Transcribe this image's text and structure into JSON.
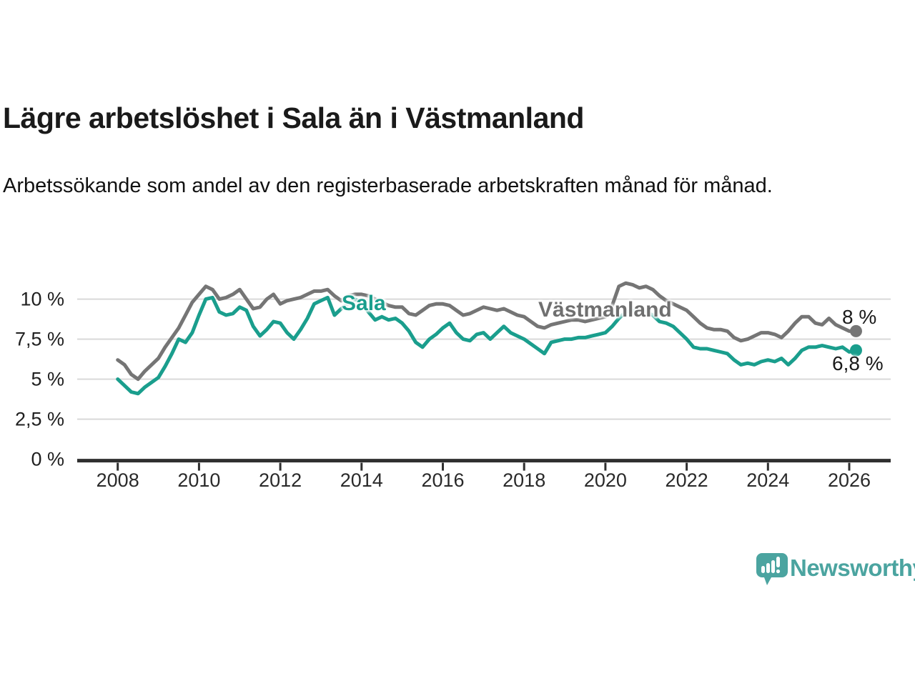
{
  "header": {
    "title": "Lägre arbetslöshet i Sala än i Västmanland",
    "subtitle": "Arbetssökande som andel av den registerbaserade arbetskraften månad för månad."
  },
  "chart": {
    "y_axis": {
      "tick_labels": [
        "10 %",
        "7,5 %",
        "5 %",
        "2,5 %",
        "0 %"
      ],
      "tick_values": [
        10,
        7.5,
        5,
        2.5,
        0
      ]
    },
    "x_axis": {
      "tick_labels": [
        "2008",
        "2010",
        "2012",
        "2014",
        "2016",
        "2018",
        "2020",
        "2022",
        "2024",
        "2026"
      ],
      "tick_values": [
        2008,
        2010,
        2012,
        2014,
        2016,
        2018,
        2020,
        2022,
        2024,
        2026
      ]
    },
    "series_labels": {
      "sala": "Sala",
      "vastmanland": "Västmanland"
    },
    "end_labels": {
      "vastmanland": "8 %",
      "sala": "6,8 %"
    },
    "colors": {
      "sala": "#1a9e8d",
      "vastmanland": "#757575",
      "grid": "#d9d9d9",
      "axis": "#2f2f2f",
      "text": "#1a1a1a"
    }
  },
  "chart_data": {
    "type": "line",
    "title": "Lägre arbetslöshet i Sala än i Västmanland",
    "subtitle": "Arbetssökande som andel av den registerbaserade arbetskraften månad för månad.",
    "unit": "%",
    "x_start": 2008.0,
    "x_step_years": 0.166667,
    "x_end": 2026.17,
    "ylim": [
      0,
      11.5
    ],
    "grid": true,
    "series": [
      {
        "name": "Västmanland",
        "color": "#757575",
        "end_value": 8.0,
        "end_label": "8 %",
        "values": [
          6.2,
          5.9,
          5.3,
          5.0,
          5.5,
          5.9,
          6.3,
          7.0,
          7.6,
          8.2,
          9.0,
          9.8,
          10.3,
          10.8,
          10.6,
          10.0,
          10.1,
          10.3,
          10.6,
          10.0,
          9.4,
          9.5,
          10.0,
          10.3,
          9.7,
          9.9,
          10.0,
          10.1,
          10.3,
          10.5,
          10.5,
          10.6,
          10.2,
          9.9,
          10.2,
          10.3,
          10.3,
          10.2,
          10.0,
          9.8,
          9.6,
          9.5,
          9.5,
          9.1,
          9.0,
          9.3,
          9.6,
          9.7,
          9.7,
          9.6,
          9.3,
          9.0,
          9.1,
          9.3,
          9.5,
          9.4,
          9.3,
          9.4,
          9.2,
          9.0,
          8.9,
          8.6,
          8.3,
          8.2,
          8.4,
          8.5,
          8.6,
          8.7,
          8.7,
          8.6,
          8.7,
          8.8,
          8.9,
          9.6,
          10.8,
          11.0,
          10.9,
          10.7,
          10.8,
          10.6,
          10.2,
          9.9,
          9.7,
          9.5,
          9.3,
          8.9,
          8.5,
          8.2,
          8.1,
          8.1,
          8.0,
          7.6,
          7.4,
          7.5,
          7.7,
          7.9,
          7.9,
          7.8,
          7.6,
          8.0,
          8.5,
          8.9,
          8.9,
          8.5,
          8.4,
          8.8,
          8.4,
          8.2,
          8.0,
          8.0
        ]
      },
      {
        "name": "Sala",
        "color": "#1a9e8d",
        "end_value": 6.8,
        "end_label": "6,8 %",
        "values": [
          5.0,
          4.6,
          4.2,
          4.1,
          4.5,
          4.8,
          5.1,
          5.8,
          6.6,
          7.5,
          7.3,
          7.9,
          9.0,
          10.0,
          10.1,
          9.2,
          9.0,
          9.1,
          9.5,
          9.3,
          8.3,
          7.7,
          8.1,
          8.6,
          8.5,
          7.9,
          7.5,
          8.1,
          8.8,
          9.7,
          9.9,
          10.1,
          9.0,
          9.4,
          9.7,
          10.0,
          9.8,
          9.2,
          8.7,
          8.9,
          8.7,
          8.8,
          8.5,
          8.0,
          7.3,
          7.0,
          7.5,
          7.8,
          8.2,
          8.5,
          7.9,
          7.5,
          7.4,
          7.8,
          7.9,
          7.5,
          7.9,
          8.3,
          7.9,
          7.7,
          7.5,
          7.2,
          6.9,
          6.6,
          7.3,
          7.4,
          7.5,
          7.5,
          7.6,
          7.6,
          7.7,
          7.8,
          7.9,
          8.3,
          8.8,
          9.2,
          9.3,
          9.2,
          9.2,
          9.0,
          8.6,
          8.5,
          8.3,
          7.9,
          7.5,
          7.0,
          6.9,
          6.9,
          6.8,
          6.7,
          6.6,
          6.2,
          5.9,
          6.0,
          5.9,
          6.1,
          6.2,
          6.1,
          6.3,
          5.9,
          6.3,
          6.8,
          7.0,
          7.0,
          7.1,
          7.0,
          6.9,
          7.0,
          6.7,
          6.8
        ]
      }
    ]
  },
  "branding": {
    "logo_text": "Newsworthy",
    "logo_color": "#4ba4a0"
  }
}
